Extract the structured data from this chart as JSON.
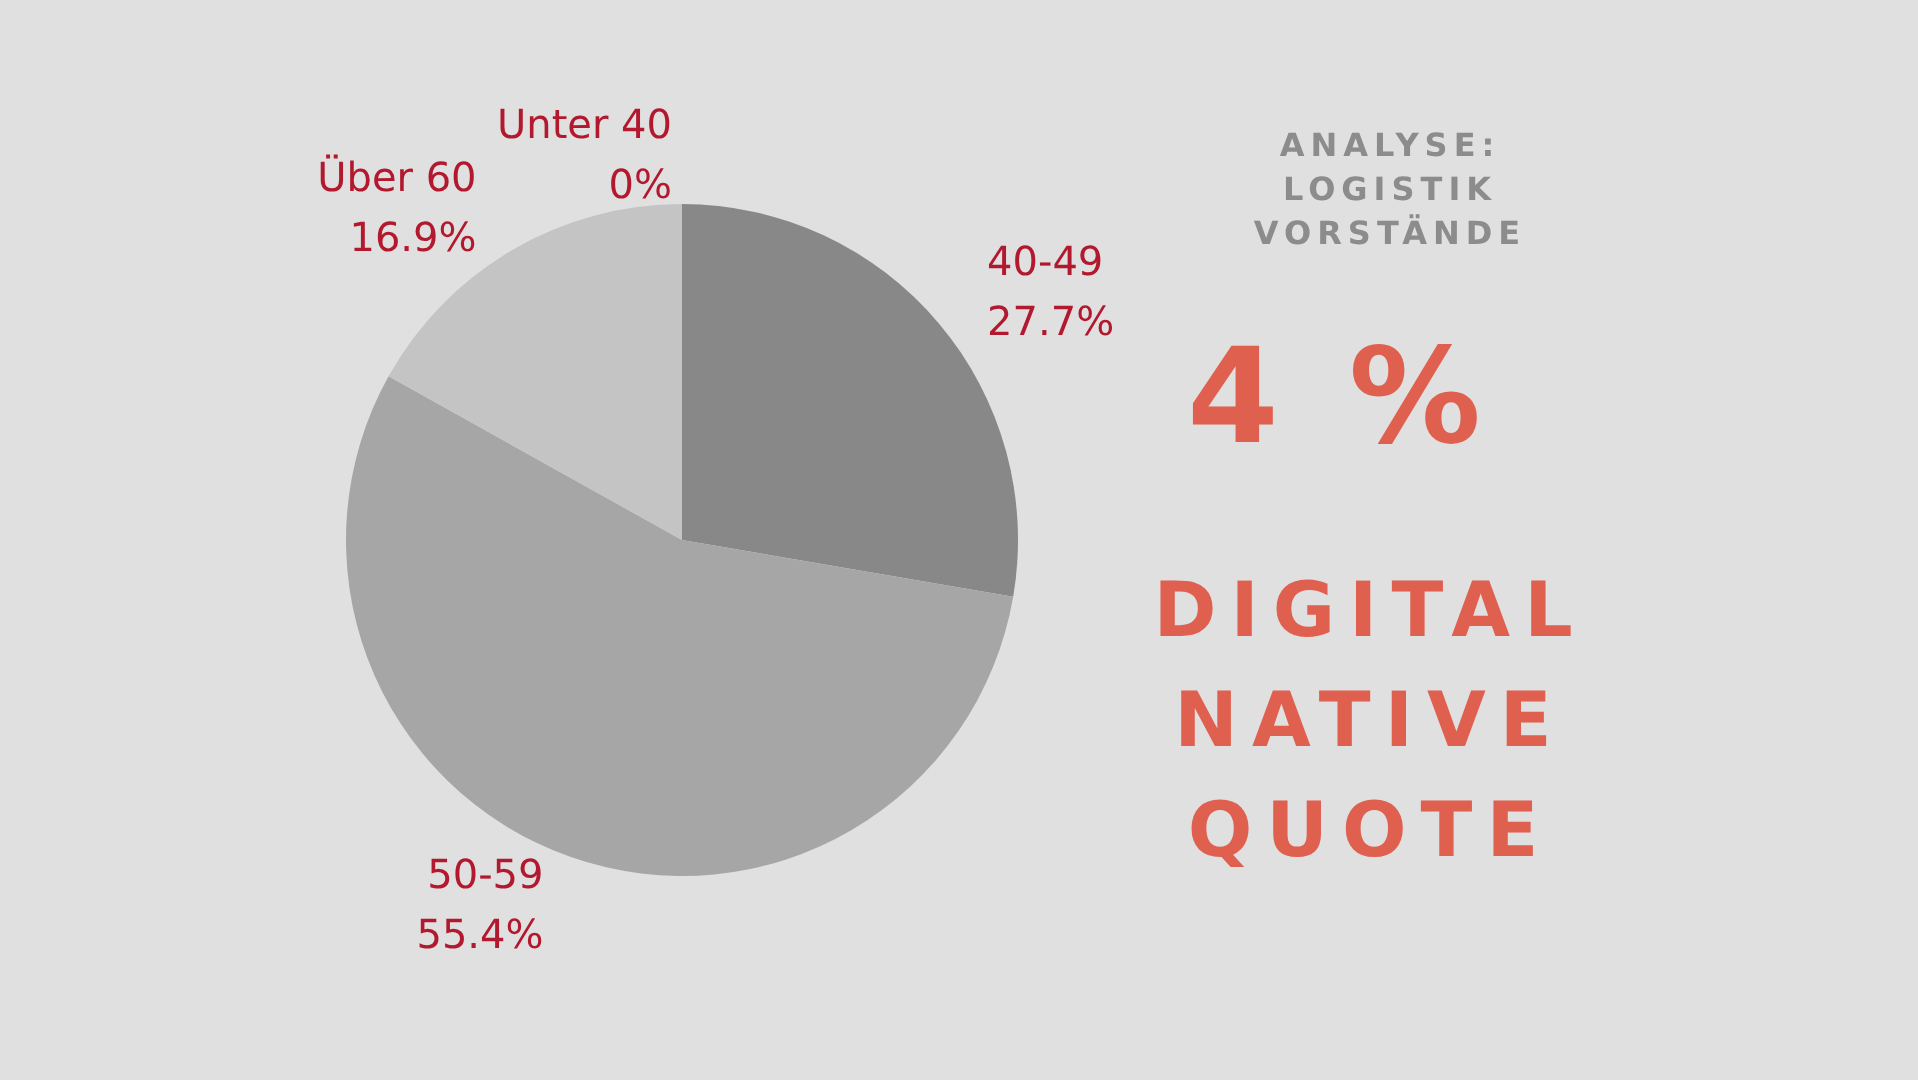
{
  "chart_data": {
    "type": "pie",
    "title": "ANALYSE: LOGISTIK VORSTÄNDE",
    "categories": [
      "Unter 40",
      "40-49",
      "50-59",
      "Über 60"
    ],
    "values": [
      0,
      27.7,
      55.4,
      16.9
    ],
    "value_labels": [
      "0%",
      "27.7%",
      "55.4%",
      "16.9%"
    ],
    "colors": [
      "#6e6e6e",
      "#888888",
      "#a6a6a6",
      "#c4c4c4"
    ],
    "annotations": [
      "4 %",
      "DIGITAL NATIVE QUOTE"
    ],
    "legend": false
  }
}
